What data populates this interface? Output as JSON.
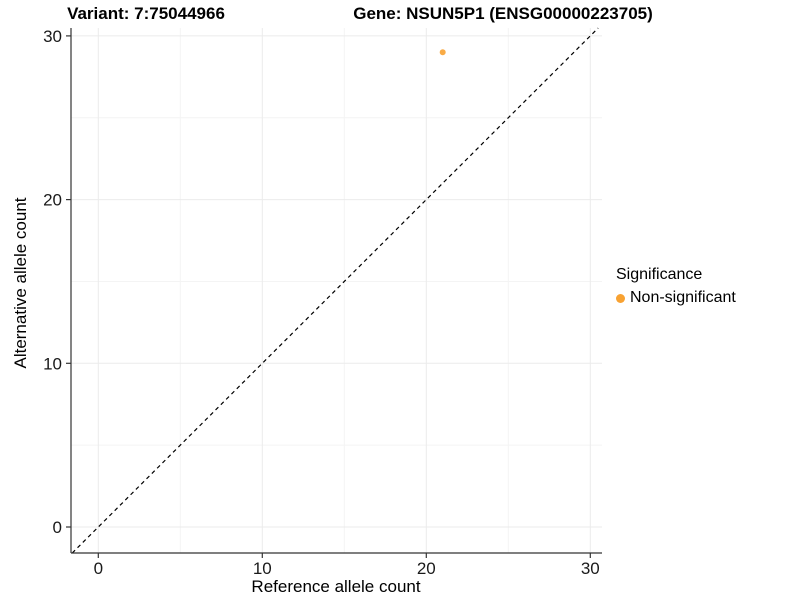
{
  "header": {
    "title_left": "Variant: 7:75044966",
    "title_right": "Gene: NSUN5P1 (ENSG00000223705)"
  },
  "chart_data": {
    "type": "scatter",
    "title": "Variant: 7:75044966 — Gene: NSUN5P1 (ENSG00000223705)",
    "xlabel": "Reference allele count",
    "ylabel": "Alternative allele count",
    "xlim": [
      -1.6,
      30.7
    ],
    "ylim": [
      -1.6,
      30.7
    ],
    "xticks": [
      0,
      10,
      20,
      30
    ],
    "yticks": [
      0,
      10,
      20,
      30
    ],
    "xticks_minor": [
      5,
      15,
      25
    ],
    "yticks_minor": [
      5,
      15,
      25
    ],
    "grid": true,
    "points": [
      {
        "x": 21,
        "y": 29,
        "series": "Non-significant"
      }
    ],
    "reference_line": {
      "type": "identity",
      "x1": -1.59,
      "y1": -1.59,
      "x2": 30.48,
      "y2": 30.48,
      "style": "dashed",
      "color": "#000000"
    },
    "legend": {
      "title": "Significance",
      "position": "right",
      "entries": [
        {
          "label": "Non-significant",
          "color": "#F8A232"
        }
      ]
    }
  },
  "colors": {
    "background": "#ffffff",
    "grid_major": "#ebebeb",
    "grid_minor": "#f4f4f4",
    "axis_line": "#333333",
    "tick_text": "#1a1a1a",
    "point": "#F8A232"
  }
}
